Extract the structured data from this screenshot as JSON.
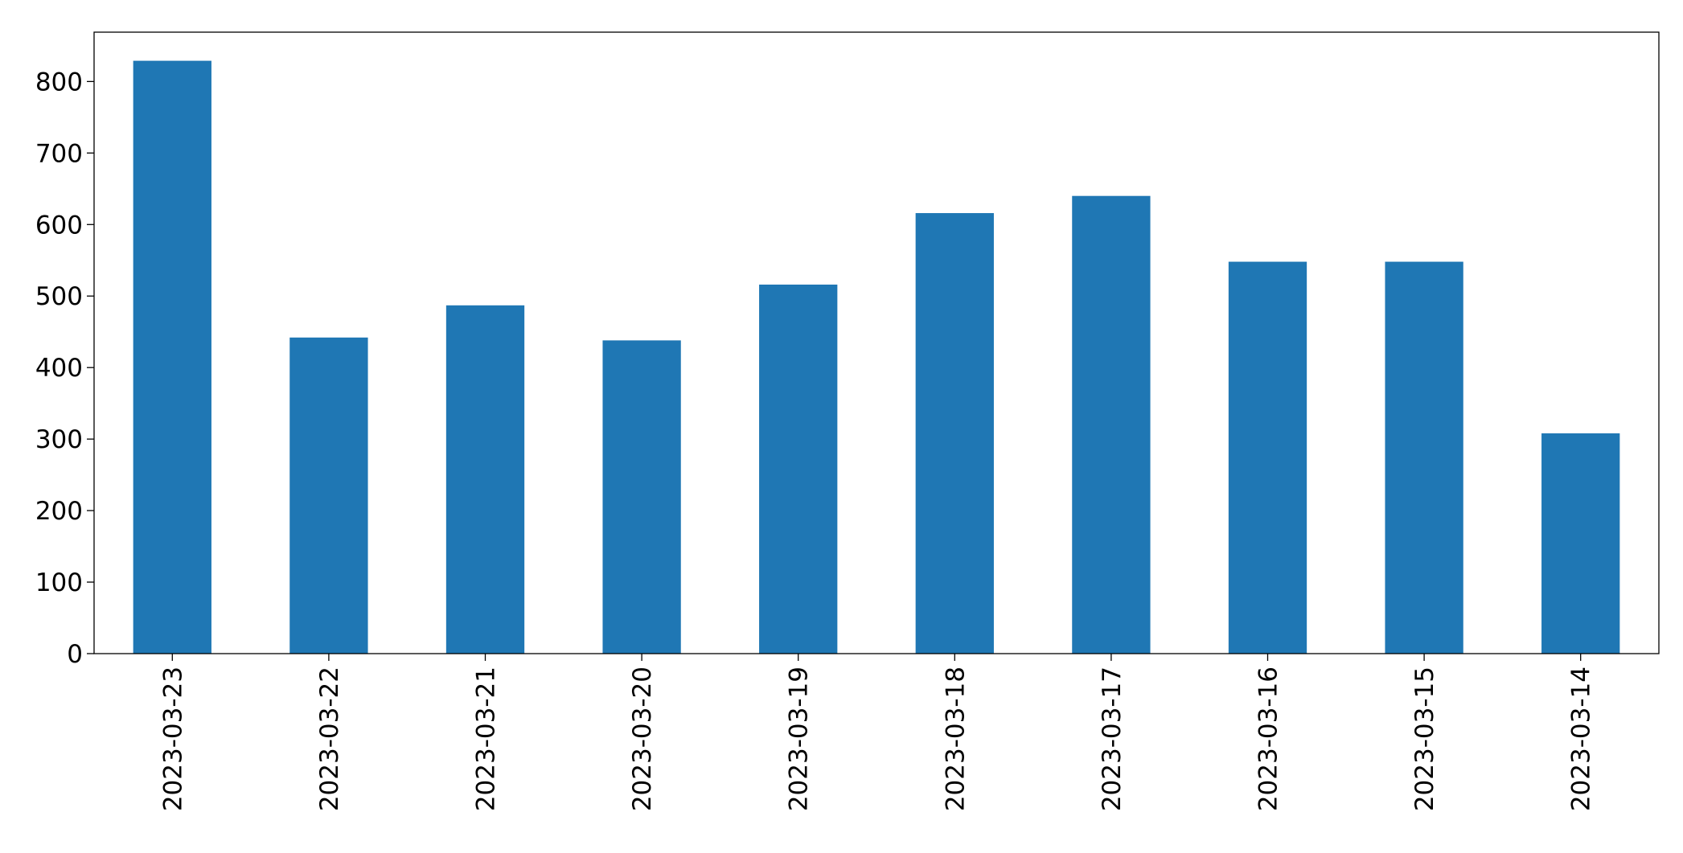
{
  "chart_data": {
    "type": "bar",
    "categories": [
      "2023-03-23",
      "2023-03-22",
      "2023-03-21",
      "2023-03-20",
      "2023-03-19",
      "2023-03-18",
      "2023-03-17",
      "2023-03-16",
      "2023-03-15",
      "2023-03-14"
    ],
    "values": [
      829,
      442,
      487,
      438,
      516,
      616,
      640,
      548,
      548,
      308
    ],
    "color": "#1f77b4",
    "ylim": [
      0,
      869
    ],
    "yticks": [
      0,
      100,
      200,
      300,
      400,
      500,
      600,
      700,
      800
    ],
    "grid": false
  }
}
